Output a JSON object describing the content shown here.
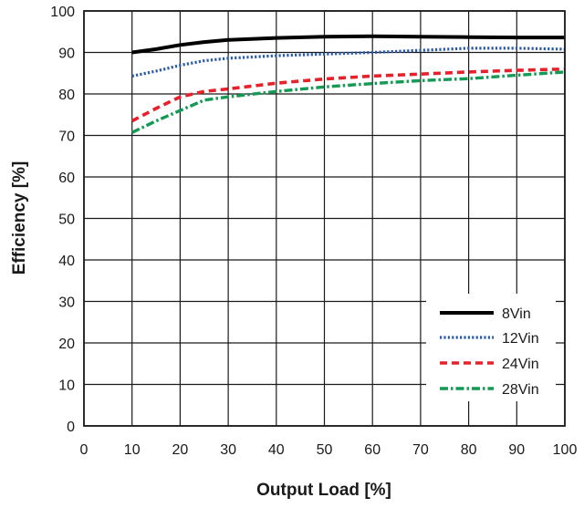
{
  "chart_data": {
    "type": "line",
    "title": "",
    "xlabel": "Output Load [%]",
    "ylabel": "Efficiency [%]",
    "xlim": [
      0,
      100
    ],
    "ylim": [
      0,
      100
    ],
    "x_ticks": [
      "0",
      "10",
      "20",
      "30",
      "40",
      "50",
      "60",
      "70",
      "80",
      "90",
      "100"
    ],
    "y_ticks": [
      "0",
      "10",
      "20",
      "30",
      "40",
      "50",
      "60",
      "70",
      "80",
      "90",
      "100"
    ],
    "grid": true,
    "legend_position": "bottom-right",
    "series": [
      {
        "name": "8Vin",
        "color": "#000000",
        "style": "solid",
        "x": [
          10,
          15,
          20,
          25,
          30,
          40,
          50,
          60,
          70,
          80,
          90,
          100
        ],
        "y": [
          90.0,
          90.8,
          91.8,
          92.5,
          93.0,
          93.5,
          93.8,
          93.9,
          93.8,
          93.7,
          93.6,
          93.6
        ]
      },
      {
        "name": "12Vin",
        "color": "#2a5aa8",
        "style": "dotted",
        "x": [
          10,
          15,
          20,
          25,
          30,
          40,
          50,
          60,
          70,
          80,
          90,
          100
        ],
        "y": [
          84.3,
          85.5,
          86.9,
          88.0,
          88.6,
          89.2,
          89.6,
          90.0,
          90.5,
          91.0,
          91.0,
          90.8
        ]
      },
      {
        "name": "24Vin",
        "color": "#e8202a",
        "style": "dashed",
        "x": [
          10,
          15,
          20,
          25,
          30,
          40,
          50,
          60,
          70,
          80,
          90,
          100
        ],
        "y": [
          73.5,
          76.5,
          79.3,
          80.6,
          81.2,
          82.6,
          83.6,
          84.3,
          84.8,
          85.3,
          85.7,
          86.0
        ]
      },
      {
        "name": "28Vin",
        "color": "#149a55",
        "style": "dash-dot",
        "x": [
          10,
          15,
          20,
          25,
          30,
          40,
          50,
          60,
          70,
          80,
          90,
          100
        ],
        "y": [
          70.7,
          73.5,
          76.0,
          78.5,
          79.3,
          80.6,
          81.7,
          82.5,
          83.2,
          83.7,
          84.5,
          85.3
        ]
      }
    ]
  }
}
